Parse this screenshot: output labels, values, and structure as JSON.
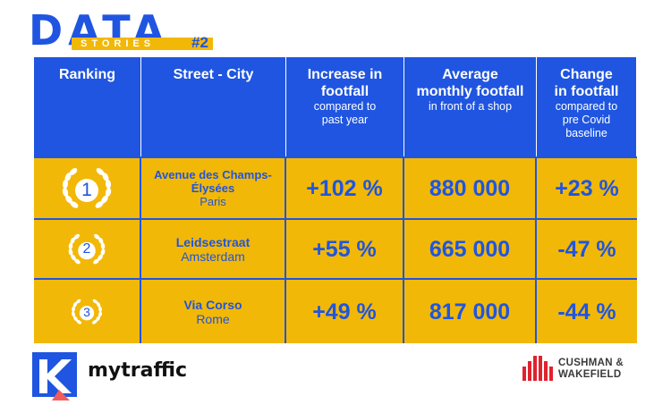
{
  "brand": {
    "title_big": "DATA",
    "title_sub": "STORIES",
    "title_num": "#2",
    "colors": {
      "blue": "#1f55e0",
      "yellow": "#f2b807",
      "white": "#ffffff",
      "red": "#e0232d"
    }
  },
  "table": {
    "headers": [
      {
        "title": "Ranking",
        "sub": ""
      },
      {
        "title": "Street - City",
        "sub": ""
      },
      {
        "title": "Increase in footfall",
        "sub": "compared to past year"
      },
      {
        "title": "Average monthly footfall",
        "sub": "in front of a shop"
      },
      {
        "title": "Change in footfall",
        "sub": "compared to pre Covid baseline"
      }
    ],
    "rows": [
      {
        "rank": "1",
        "rank_icon": "laurel-wreath-icon",
        "street": "Avenue des Champs-Élysées",
        "city": "Paris",
        "increase": "+102 %",
        "avg_footfall": "880 000",
        "change": "+23 %"
      },
      {
        "rank": "2",
        "rank_icon": "laurel-wreath-icon",
        "street": "Leidsestraat",
        "city": "Amsterdam",
        "increase": "+55 %",
        "avg_footfall": "665 000",
        "change": "-47 %"
      },
      {
        "rank": "3",
        "rank_icon": "laurel-wreath-icon",
        "street": "Via Corso",
        "city": "Rome",
        "increase": "+49 %",
        "avg_footfall": "817 000",
        "change": "-44 %"
      }
    ]
  },
  "footer": {
    "mytraffic": {
      "name": "mytraffic",
      "icon": "mytraffic-logo-icon"
    },
    "cushman": {
      "line1": "CUSHMAN &",
      "line2": "WAKEFIELD",
      "icon": "cushman-wakefield-logo-icon"
    }
  }
}
